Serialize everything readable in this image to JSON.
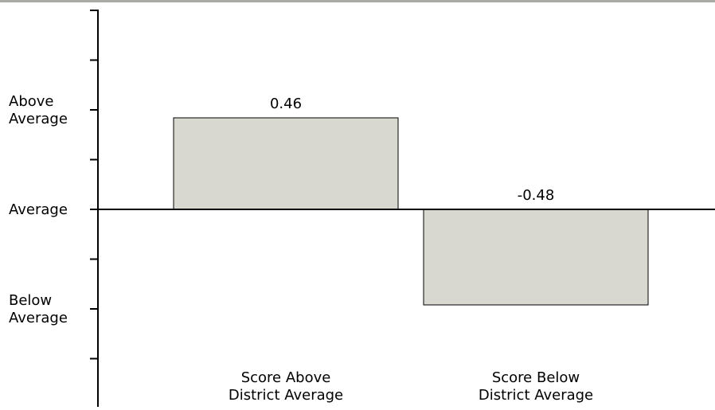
{
  "chart_data": {
    "type": "bar",
    "categories": [
      [
        "Score Above",
        "District Average"
      ],
      [
        "Score Below",
        "District Average"
      ]
    ],
    "values": [
      0.46,
      -0.48
    ],
    "value_labels": [
      "0.46",
      "-0.48"
    ],
    "ylim": [
      -0.9,
      1.0
    ],
    "y_tick_step": 0.25,
    "y_axis_labels": [
      {
        "text": [
          "Above",
          "Average"
        ],
        "value": 0.5
      },
      {
        "text": [
          "Average"
        ],
        "value": 0
      },
      {
        "text": [
          "Below",
          "Average"
        ],
        "value": -0.5
      }
    ],
    "colors": {
      "bar_fill": "#d8d8d0",
      "bar_stroke": "#000000",
      "top_rule": "#a9aaa3"
    },
    "grid": false,
    "legend": "none"
  }
}
